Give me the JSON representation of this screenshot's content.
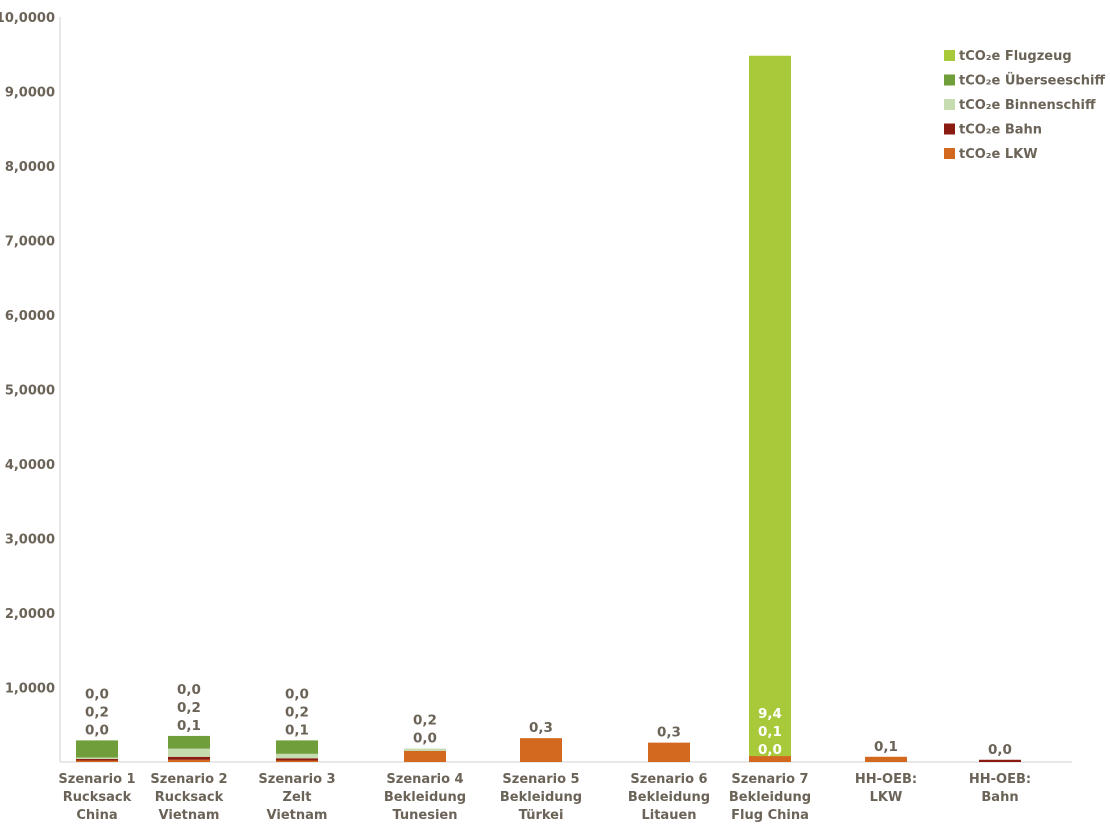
{
  "chart_data": {
    "type": "bar",
    "stacked": true,
    "categories": [
      [
        "Szenario 1",
        "Rucksack",
        "China"
      ],
      [
        "Szenario 2",
        "Rucksack",
        "Vietnam"
      ],
      [
        "Szenario 3",
        "Zelt",
        "Vietnam"
      ],
      [
        "Szenario 4",
        "Bekleidung",
        "Tunesien"
      ],
      [
        "Szenario 5",
        "Bekleidung",
        "Türkei"
      ],
      [
        "Szenario 6",
        "Bekleidung",
        "Litauen"
      ],
      [
        "Szenario 7",
        "Bekleidung",
        "Flug China"
      ],
      [
        "HH-OEB:",
        "LKW"
      ],
      [
        "HH-OEB:",
        "Bahn"
      ]
    ],
    "series": [
      {
        "name": "tCO₂e LKW",
        "color": "#d2691e",
        "values": [
          0.02,
          0.03,
          0.02,
          0.15,
          0.32,
          0.26,
          0.08,
          0.07,
          0.0
        ]
      },
      {
        "name": "tCO₂e Bahn",
        "color": "#8b1a10",
        "values": [
          0.02,
          0.04,
          0.03,
          0.0,
          0.0,
          0.0,
          0.0,
          0.0,
          0.03
        ]
      },
      {
        "name": "tCO₂e Binnenschiff",
        "color": "#c5dcb0",
        "values": [
          0.02,
          0.11,
          0.06,
          0.03,
          0.0,
          0.0,
          0.0,
          0.0,
          0.0
        ]
      },
      {
        "name": "tCO₂e Überseeschiff",
        "color": "#6f9e3a",
        "values": [
          0.23,
          0.17,
          0.18,
          0.0,
          0.0,
          0.0,
          0.0,
          0.0,
          0.0
        ]
      },
      {
        "name": "tCO₂e Flugzeug",
        "color": "#a8c93a",
        "values": [
          0.0,
          0.0,
          0.0,
          0.0,
          0.0,
          0.0,
          9.4,
          0.0,
          0.0
        ]
      }
    ],
    "data_labels": [
      [
        "0,0",
        "0,2",
        "0,0"
      ],
      [
        "0,0",
        "0,2",
        "0,1"
      ],
      [
        "0,0",
        "0,2",
        "0,1"
      ],
      [
        "0,2",
        "0,0"
      ],
      [
        "0,3"
      ],
      [
        "0,3"
      ],
      [
        "9,4",
        "0,1",
        "0,0"
      ],
      [
        "0,1"
      ],
      [
        "0,0"
      ]
    ],
    "y_ticks": [
      "1,0000",
      "2,0000",
      "3,0000",
      "4,0000",
      "5,0000",
      "6,0000",
      "7,0000",
      "8,0000",
      "9,0000",
      "10,0000"
    ],
    "ylim": [
      0,
      10
    ],
    "legend_position": "top-right",
    "legend_order": [
      "tCO₂e Flugzeug",
      "tCO₂e Überseeschiff",
      "tCO₂e Binnenschiff",
      "tCO₂e Bahn",
      "tCO₂e LKW"
    ],
    "grid": false,
    "axis_color": "#d0d0d0"
  }
}
